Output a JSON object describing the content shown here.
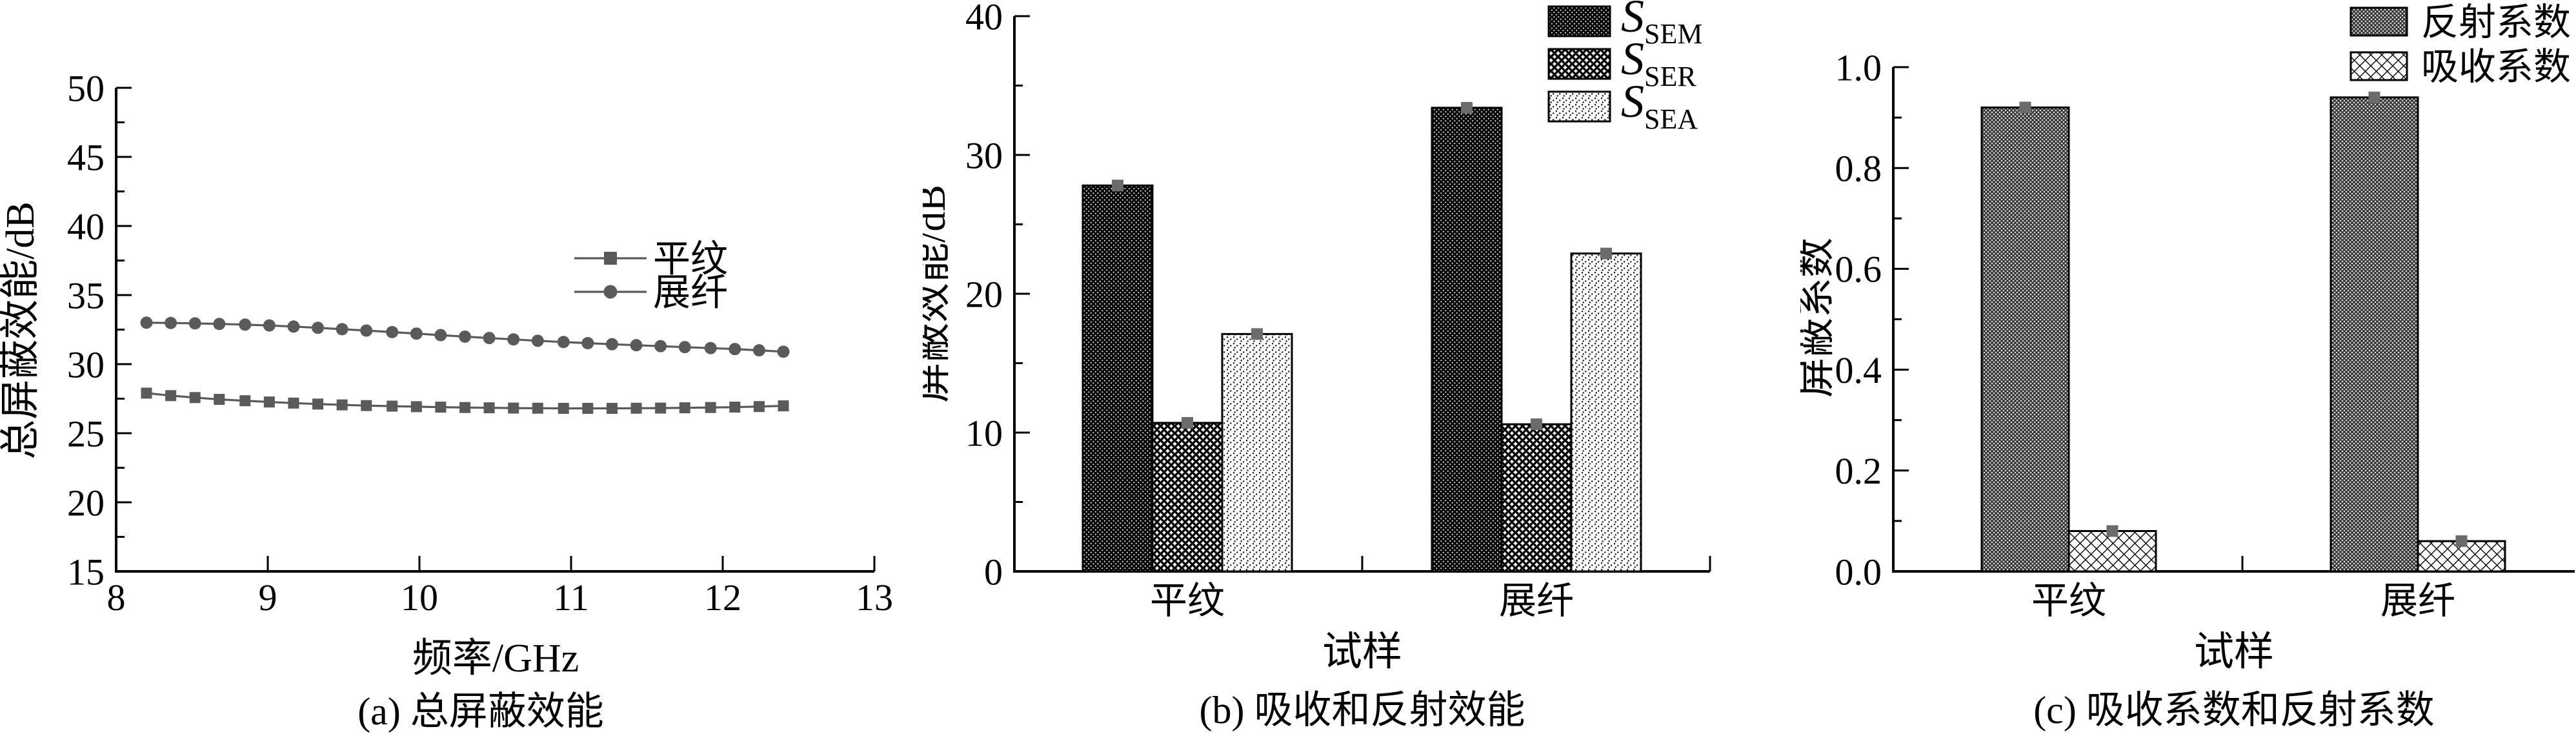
{
  "figure_title": "",
  "style": {
    "axis_color": "#000000",
    "marker_color": "#5a5a5a",
    "line_color": "#5a5a5a",
    "error_marker_color": "#6b6b6b",
    "background": "#ffffff"
  },
  "chart_data": [
    {
      "type": "line",
      "caption": "(a) 总屏蔽效能",
      "xlabel": "频率/GHz",
      "ylabel": "总屏蔽效能/dB",
      "xlim": [
        8,
        13
      ],
      "ylim": [
        15,
        50
      ],
      "x_ticks": [
        8,
        9,
        10,
        11,
        12,
        13
      ],
      "y_ticks": [
        15,
        20,
        25,
        30,
        35,
        40,
        45,
        50
      ],
      "y_minor_step": 2.5,
      "grid": false,
      "legend_position": "right-center-inside",
      "x": [
        8.2,
        8.36,
        8.52,
        8.68,
        8.85,
        9.01,
        9.17,
        9.33,
        9.49,
        9.65,
        9.82,
        9.98,
        10.14,
        10.3,
        10.46,
        10.62,
        10.78,
        10.95,
        11.11,
        11.27,
        11.43,
        11.59,
        11.75,
        11.92,
        12.08,
        12.24,
        12.4
      ],
      "series": [
        {
          "name": "平纹",
          "key": "plain-weave",
          "marker": "square",
          "values": [
            27.9,
            27.72,
            27.58,
            27.45,
            27.35,
            27.26,
            27.18,
            27.11,
            27.05,
            27.0,
            26.96,
            26.92,
            26.89,
            26.86,
            26.84,
            26.82,
            26.81,
            26.8,
            26.8,
            26.8,
            26.81,
            26.82,
            26.84,
            26.86,
            26.89,
            26.93,
            26.98
          ]
        },
        {
          "name": "展纤",
          "key": "spread-tow",
          "marker": "circle",
          "values": [
            33.0,
            32.98,
            32.95,
            32.91,
            32.86,
            32.8,
            32.72,
            32.63,
            32.53,
            32.43,
            32.32,
            32.21,
            32.1,
            31.99,
            31.89,
            31.79,
            31.69,
            31.6,
            31.52,
            31.44,
            31.37,
            31.3,
            31.23,
            31.16,
            31.09,
            31.0,
            30.9
          ]
        }
      ]
    },
    {
      "type": "bar",
      "caption": "(b) 吸收和反射效能",
      "xlabel": "试样",
      "ylabel": "屏蔽效能/dB",
      "ylim": [
        0,
        40
      ],
      "y_ticks": [
        0,
        10,
        20,
        30,
        40
      ],
      "y_minor_step": 5,
      "categories": [
        "平纹",
        "展纤"
      ],
      "category_keys": [
        "plain-weave",
        "spread-tow"
      ],
      "legend_position": "top-right-inside",
      "series": [
        {
          "name": "S_SEM",
          "key": "s-sem",
          "label_main": "S",
          "label_sub": "SEM",
          "pattern": "dense-black-dots",
          "values": [
            27.8,
            33.4
          ],
          "errors": [
            0.2,
            0.2
          ]
        },
        {
          "name": "S_SER",
          "key": "s-ser",
          "label_main": "S",
          "label_sub": "SER",
          "pattern": "circle-hatch",
          "values": [
            10.7,
            10.6
          ],
          "errors": [
            0.2,
            0.2
          ]
        },
        {
          "name": "S_SEA",
          "key": "s-sea",
          "label_main": "S",
          "label_sub": "SEA",
          "pattern": "light-speckle",
          "values": [
            17.1,
            22.9
          ],
          "errors": [
            0.2,
            0.2
          ]
        }
      ]
    },
    {
      "type": "bar",
      "caption": "(c) 吸收系数和反射系数",
      "xlabel": "试样",
      "ylabel": "屏蔽系数",
      "ylim": [
        0,
        1.0
      ],
      "y_ticks": [
        "0.0",
        "0.2",
        "0.4",
        "0.6",
        "0.8",
        "1.0"
      ],
      "y_minor_step": 0.1,
      "categories": [
        "平纹",
        "展纤"
      ],
      "category_keys": [
        "plain-weave",
        "spread-tow"
      ],
      "legend_position": "top-right-inside",
      "series": [
        {
          "name": "反射系数",
          "key": "reflection-coefficient",
          "pattern": "gray-weave",
          "values": [
            0.92,
            0.94
          ],
          "errors": [
            0.01,
            0.01
          ]
        },
        {
          "name": "吸收系数",
          "key": "absorption-coefficient",
          "pattern": "diamond-lattice",
          "values": [
            0.08,
            0.06
          ],
          "errors": [
            0.01,
            0.01
          ]
        }
      ]
    }
  ]
}
